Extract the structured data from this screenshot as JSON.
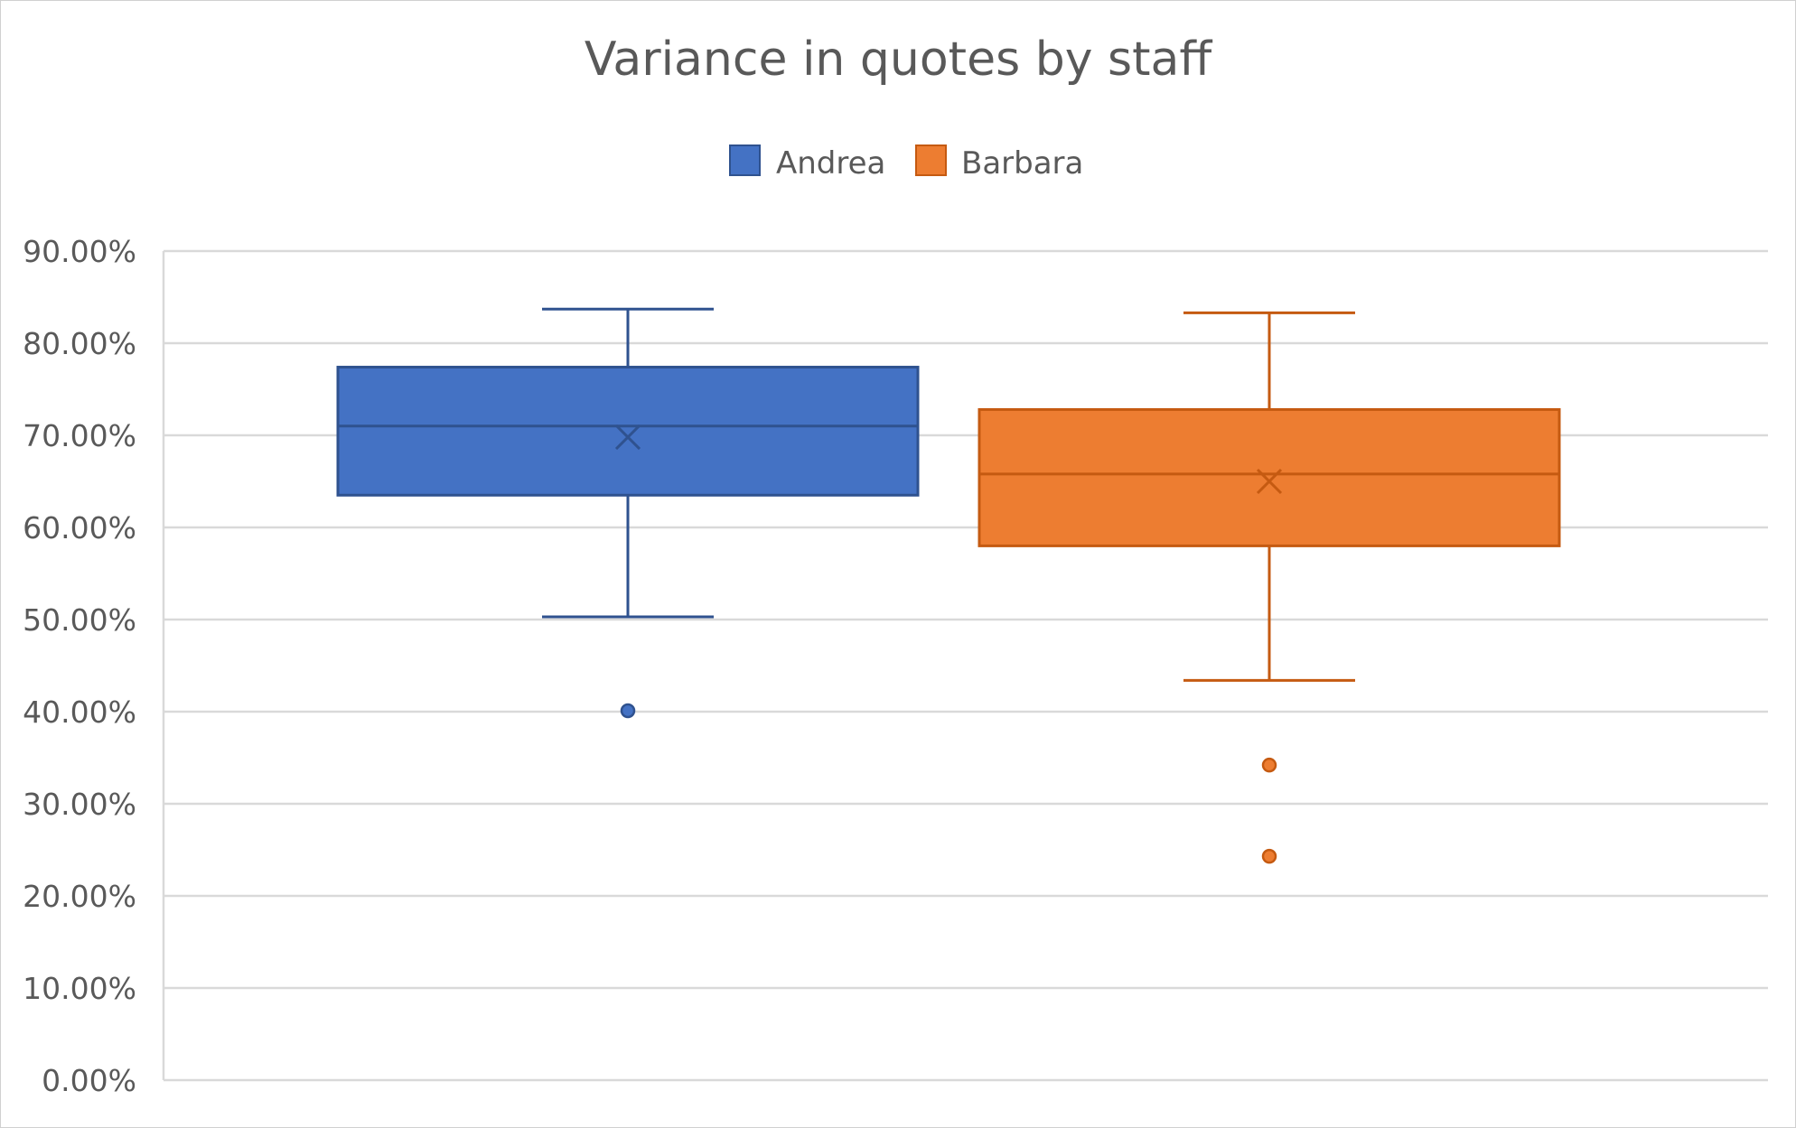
{
  "chart_data": {
    "type": "boxplot",
    "title": "Variance in quotes by staff",
    "xlabel": "",
    "ylabel": "",
    "ylim": [
      0,
      0.9
    ],
    "yticks": [
      0,
      0.1,
      0.2,
      0.3,
      0.4,
      0.5,
      0.6,
      0.7,
      0.8,
      0.9
    ],
    "ytick_labels": [
      "0.00%",
      "10.00%",
      "20.00%",
      "30.00%",
      "40.00%",
      "50.00%",
      "60.00%",
      "70.00%",
      "80.00%",
      "90.00%"
    ],
    "grid": true,
    "legend": "top-center",
    "series": [
      {
        "name": "Andrea",
        "color": "#4472c4",
        "edge_color": "#2f528f",
        "min": 0.503,
        "q1": 0.635,
        "median": 0.71,
        "mean": 0.698,
        "q3": 0.774,
        "max": 0.837,
        "outliers": [
          0.401
        ]
      },
      {
        "name": "Barbara",
        "color": "#ed7d31",
        "edge_color": "#c55a11",
        "min": 0.434,
        "q1": 0.58,
        "median": 0.658,
        "mean": 0.65,
        "q3": 0.728,
        "max": 0.833,
        "outliers": [
          0.342,
          0.243
        ]
      }
    ]
  }
}
